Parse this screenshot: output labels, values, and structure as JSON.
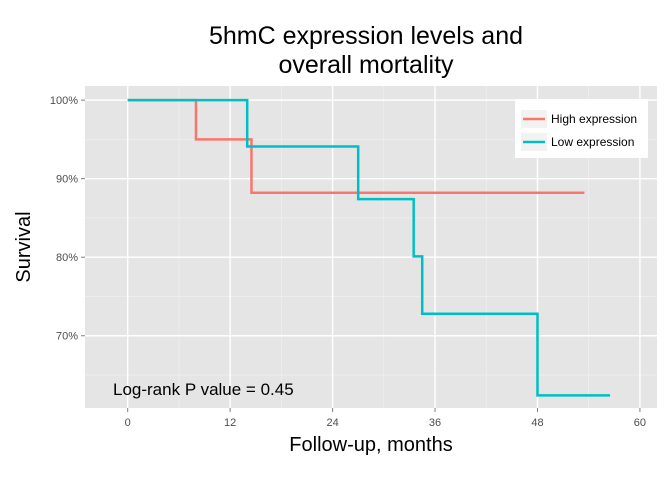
{
  "chart_data": {
    "type": "line",
    "title_lines": [
      "5hmC expression levels and",
      "overall mortality"
    ],
    "xlabel": "Follow-up, months",
    "ylabel": "Survival",
    "xlim": [
      -5,
      62
    ],
    "ylim": [
      60.8,
      101.8
    ],
    "x_ticks": [
      0,
      12,
      24,
      36,
      48,
      60
    ],
    "x_tick_labels": [
      "0",
      "12",
      "24",
      "36",
      "48",
      "60"
    ],
    "y_ticks": [
      70,
      80,
      90,
      100
    ],
    "y_tick_labels": [
      "70%",
      "80%",
      "90%",
      "100%"
    ],
    "grid": true,
    "legend_position": "top-right",
    "annotation": "Log-rank P value = 0.45",
    "series": [
      {
        "name": "High expression",
        "color": "#F8766D",
        "step": [
          [
            0,
            100
          ],
          [
            8,
            95
          ],
          [
            14.5,
            88.2
          ],
          [
            53.5,
            88.2
          ]
        ]
      },
      {
        "name": "Low expression",
        "color": "#00BFC4",
        "step": [
          [
            0,
            100
          ],
          [
            14,
            94.1
          ],
          [
            27,
            87.4
          ],
          [
            33.5,
            80.1
          ],
          [
            34.5,
            72.8
          ],
          [
            48,
            62.4
          ],
          [
            56.5,
            62.4
          ]
        ]
      }
    ]
  }
}
